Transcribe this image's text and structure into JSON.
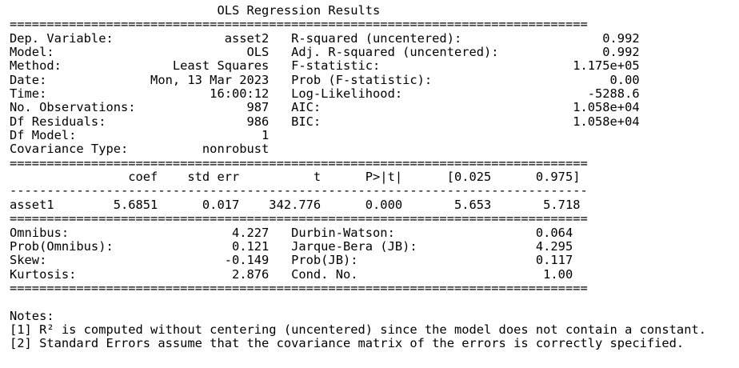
{
  "title": "OLS Regression Results",
  "rule_double_wide": "==============================================================================",
  "summary": {
    "rows": [
      {
        "left_label": "Dep. Variable:",
        "left_value": "asset2",
        "right_label": "R-squared (uncentered):",
        "right_value": "0.992"
      },
      {
        "left_label": "Model:",
        "left_value": "OLS",
        "right_label": "Adj. R-squared (uncentered):",
        "right_value": "0.992"
      },
      {
        "left_label": "Method:",
        "left_value": "Least Squares",
        "right_label": "F-statistic:",
        "right_value": "1.175e+05"
      },
      {
        "left_label": "Date:",
        "left_value": "Mon, 13 Mar 2023",
        "right_label": "Prob (F-statistic):",
        "right_value": "0.00"
      },
      {
        "left_label": "Time:",
        "left_value": "16:00:12",
        "right_label": "Log-Likelihood:",
        "right_value": "-5288.6"
      },
      {
        "left_label": "No. Observations:",
        "left_value": "987",
        "right_label": "AIC:",
        "right_value": "1.058e+04"
      },
      {
        "left_label": "Df Residuals:",
        "left_value": "986",
        "right_label": "BIC:",
        "right_value": "1.058e+04"
      },
      {
        "left_label": "Df Model:",
        "left_value": "1",
        "right_label": "",
        "right_value": ""
      },
      {
        "left_label": "Covariance Type:",
        "left_value": "nonrobust",
        "right_label": "",
        "right_value": ""
      }
    ]
  },
  "rule_double_mid": "==============================================================================",
  "coef_table": {
    "headers": [
      "",
      "coef",
      "std err",
      "t",
      "P>|t|",
      "[0.025",
      "0.975]"
    ],
    "rule_single": "------------------------------------------------------------------------------",
    "rows": [
      [
        "asset1",
        "5.6851",
        "0.017",
        "342.776",
        "0.000",
        "5.653",
        "5.718"
      ]
    ]
  },
  "diagnostics": {
    "rows": [
      {
        "left_label": "Omnibus:",
        "left_value": "4.227",
        "right_label": "Durbin-Watson:",
        "right_value": "0.064"
      },
      {
        "left_label": "Prob(Omnibus):",
        "left_value": "0.121",
        "right_label": "Jarque-Bera (JB):",
        "right_value": "4.295"
      },
      {
        "left_label": "Skew:",
        "left_value": "-0.149",
        "right_label": "Prob(JB):",
        "right_value": "0.117"
      },
      {
        "left_label": "Kurtosis:",
        "left_value": "2.876",
        "right_label": "Cond. No.",
        "right_value": "1.00"
      }
    ]
  },
  "notes": {
    "heading": "Notes:",
    "items": [
      "[1] R² is computed without centering (uncentered) since the model does not contain a constant.",
      "[2] Standard Errors assume that the covariance matrix of the errors is correctly specified."
    ]
  }
}
